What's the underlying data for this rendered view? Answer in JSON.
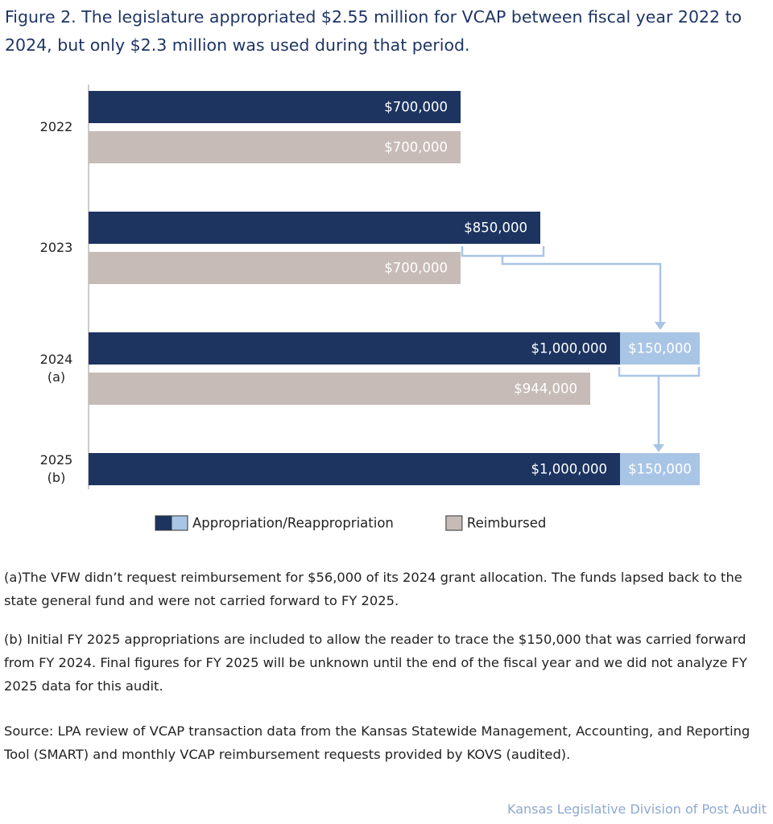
{
  "chart_data": {
    "type": "bar",
    "orientation": "horizontal",
    "title": "Figure 2. The legislature appropriated $2.55 million for VCAP between fiscal year 2022 to 2024, but only $2.3 million was used during that period.",
    "categories": [
      "2022",
      "2023",
      "2024\n(a)",
      "2025\n(b)"
    ],
    "series": [
      {
        "name": "Appropriation/Reappropriation",
        "color": "#1d3461",
        "carried_color": "#a9c5e6",
        "values": [
          700000,
          850000,
          1000000,
          1000000
        ],
        "value_labels": [
          "$700,000",
          "$850,000",
          "$1,000,000",
          "$1,000,000"
        ],
        "carried_forward": [
          null,
          null,
          150000,
          150000
        ],
        "carried_forward_labels": [
          null,
          null,
          "$150,000",
          "$150,000"
        ]
      },
      {
        "name": "Reimbursed",
        "color": "#c6bbb6",
        "values": [
          700000,
          700000,
          944000,
          null
        ],
        "value_labels": [
          "$700,000",
          "$700,000",
          "$944,000",
          null
        ]
      }
    ],
    "xlim": [
      0,
      1150000
    ],
    "notes": [
      "(a)The VFW didn’t request reimbursement for $56,000 of its 2024 grant allocation. The funds lapsed back to the state general fund and were not carried forward to FY 2025.",
      "(b) Initial FY 2025 appropriations are included to allow the reader to trace the $150,000 that was carried forward from FY 2024. Final figures for FY 2025 will be unknown until the end of the fiscal year and we did not analyze FY 2025 data for this audit."
    ],
    "source": "Source: LPA review of VCAP transaction data from the Kansas Statewide Management, Accounting, and Reporting Tool (SMART) and monthly VCAP reimbursement requests provided by KOVS (audited).",
    "credit": "Kansas Legislative Division of Post Audit"
  }
}
